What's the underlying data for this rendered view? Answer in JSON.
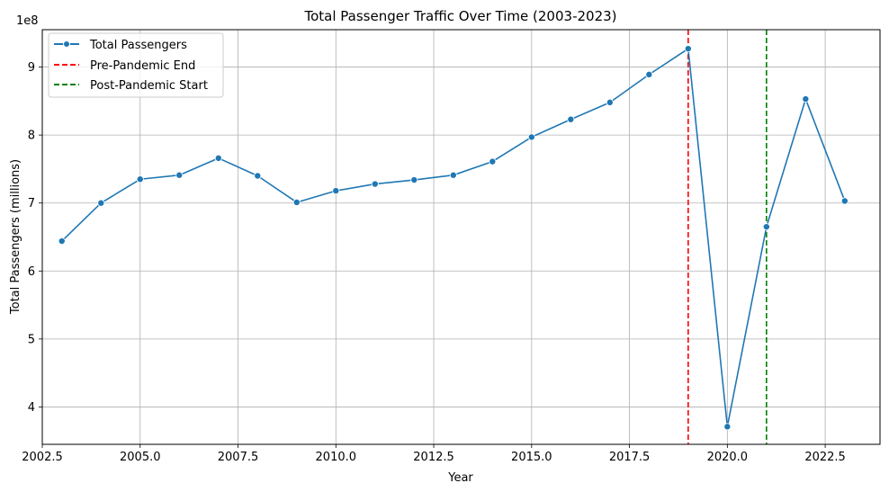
{
  "chart_data": {
    "type": "line",
    "title": "Total Passenger Traffic Over Time (2003-2023)",
    "xlabel": "Year",
    "ylabel": "Total Passengers (millions)",
    "y_offset_text": "1e8",
    "xlim": [
      2002.5,
      2023.9
    ],
    "ylim": [
      3.45,
      9.55
    ],
    "x_ticks": [
      2002.5,
      2005.0,
      2007.5,
      2010.0,
      2012.5,
      2015.0,
      2017.5,
      2020.0,
      2022.5
    ],
    "x_tick_labels": [
      "2002.5",
      "2005.0",
      "2007.5",
      "2010.0",
      "2012.5",
      "2015.0",
      "2017.5",
      "2020.0",
      "2022.5"
    ],
    "y_ticks": [
      4,
      5,
      6,
      7,
      8,
      9
    ],
    "y_tick_labels": [
      "4",
      "5",
      "6",
      "7",
      "8",
      "9"
    ],
    "grid": true,
    "legend_position": "top-left",
    "series": [
      {
        "name": "Total Passengers",
        "color": "#1f77b4",
        "marker": "circle",
        "x": [
          2003,
          2004,
          2005,
          2006,
          2007,
          2008,
          2009,
          2010,
          2011,
          2012,
          2013,
          2014,
          2015,
          2016,
          2017,
          2018,
          2019,
          2020,
          2021,
          2022,
          2023
        ],
        "values": [
          6.44,
          7.0,
          7.35,
          7.41,
          7.66,
          7.4,
          7.01,
          7.18,
          7.28,
          7.34,
          7.41,
          7.61,
          7.97,
          8.23,
          8.48,
          8.89,
          9.27,
          3.71,
          6.65,
          8.53,
          7.03
        ]
      }
    ],
    "vlines": [
      {
        "name": "Pre-Pandemic End",
        "x": 2019,
        "color": "#ff0000",
        "style": "dashed"
      },
      {
        "name": "Post-Pandemic Start",
        "x": 2021,
        "color": "#008000",
        "style": "dashed"
      }
    ]
  }
}
